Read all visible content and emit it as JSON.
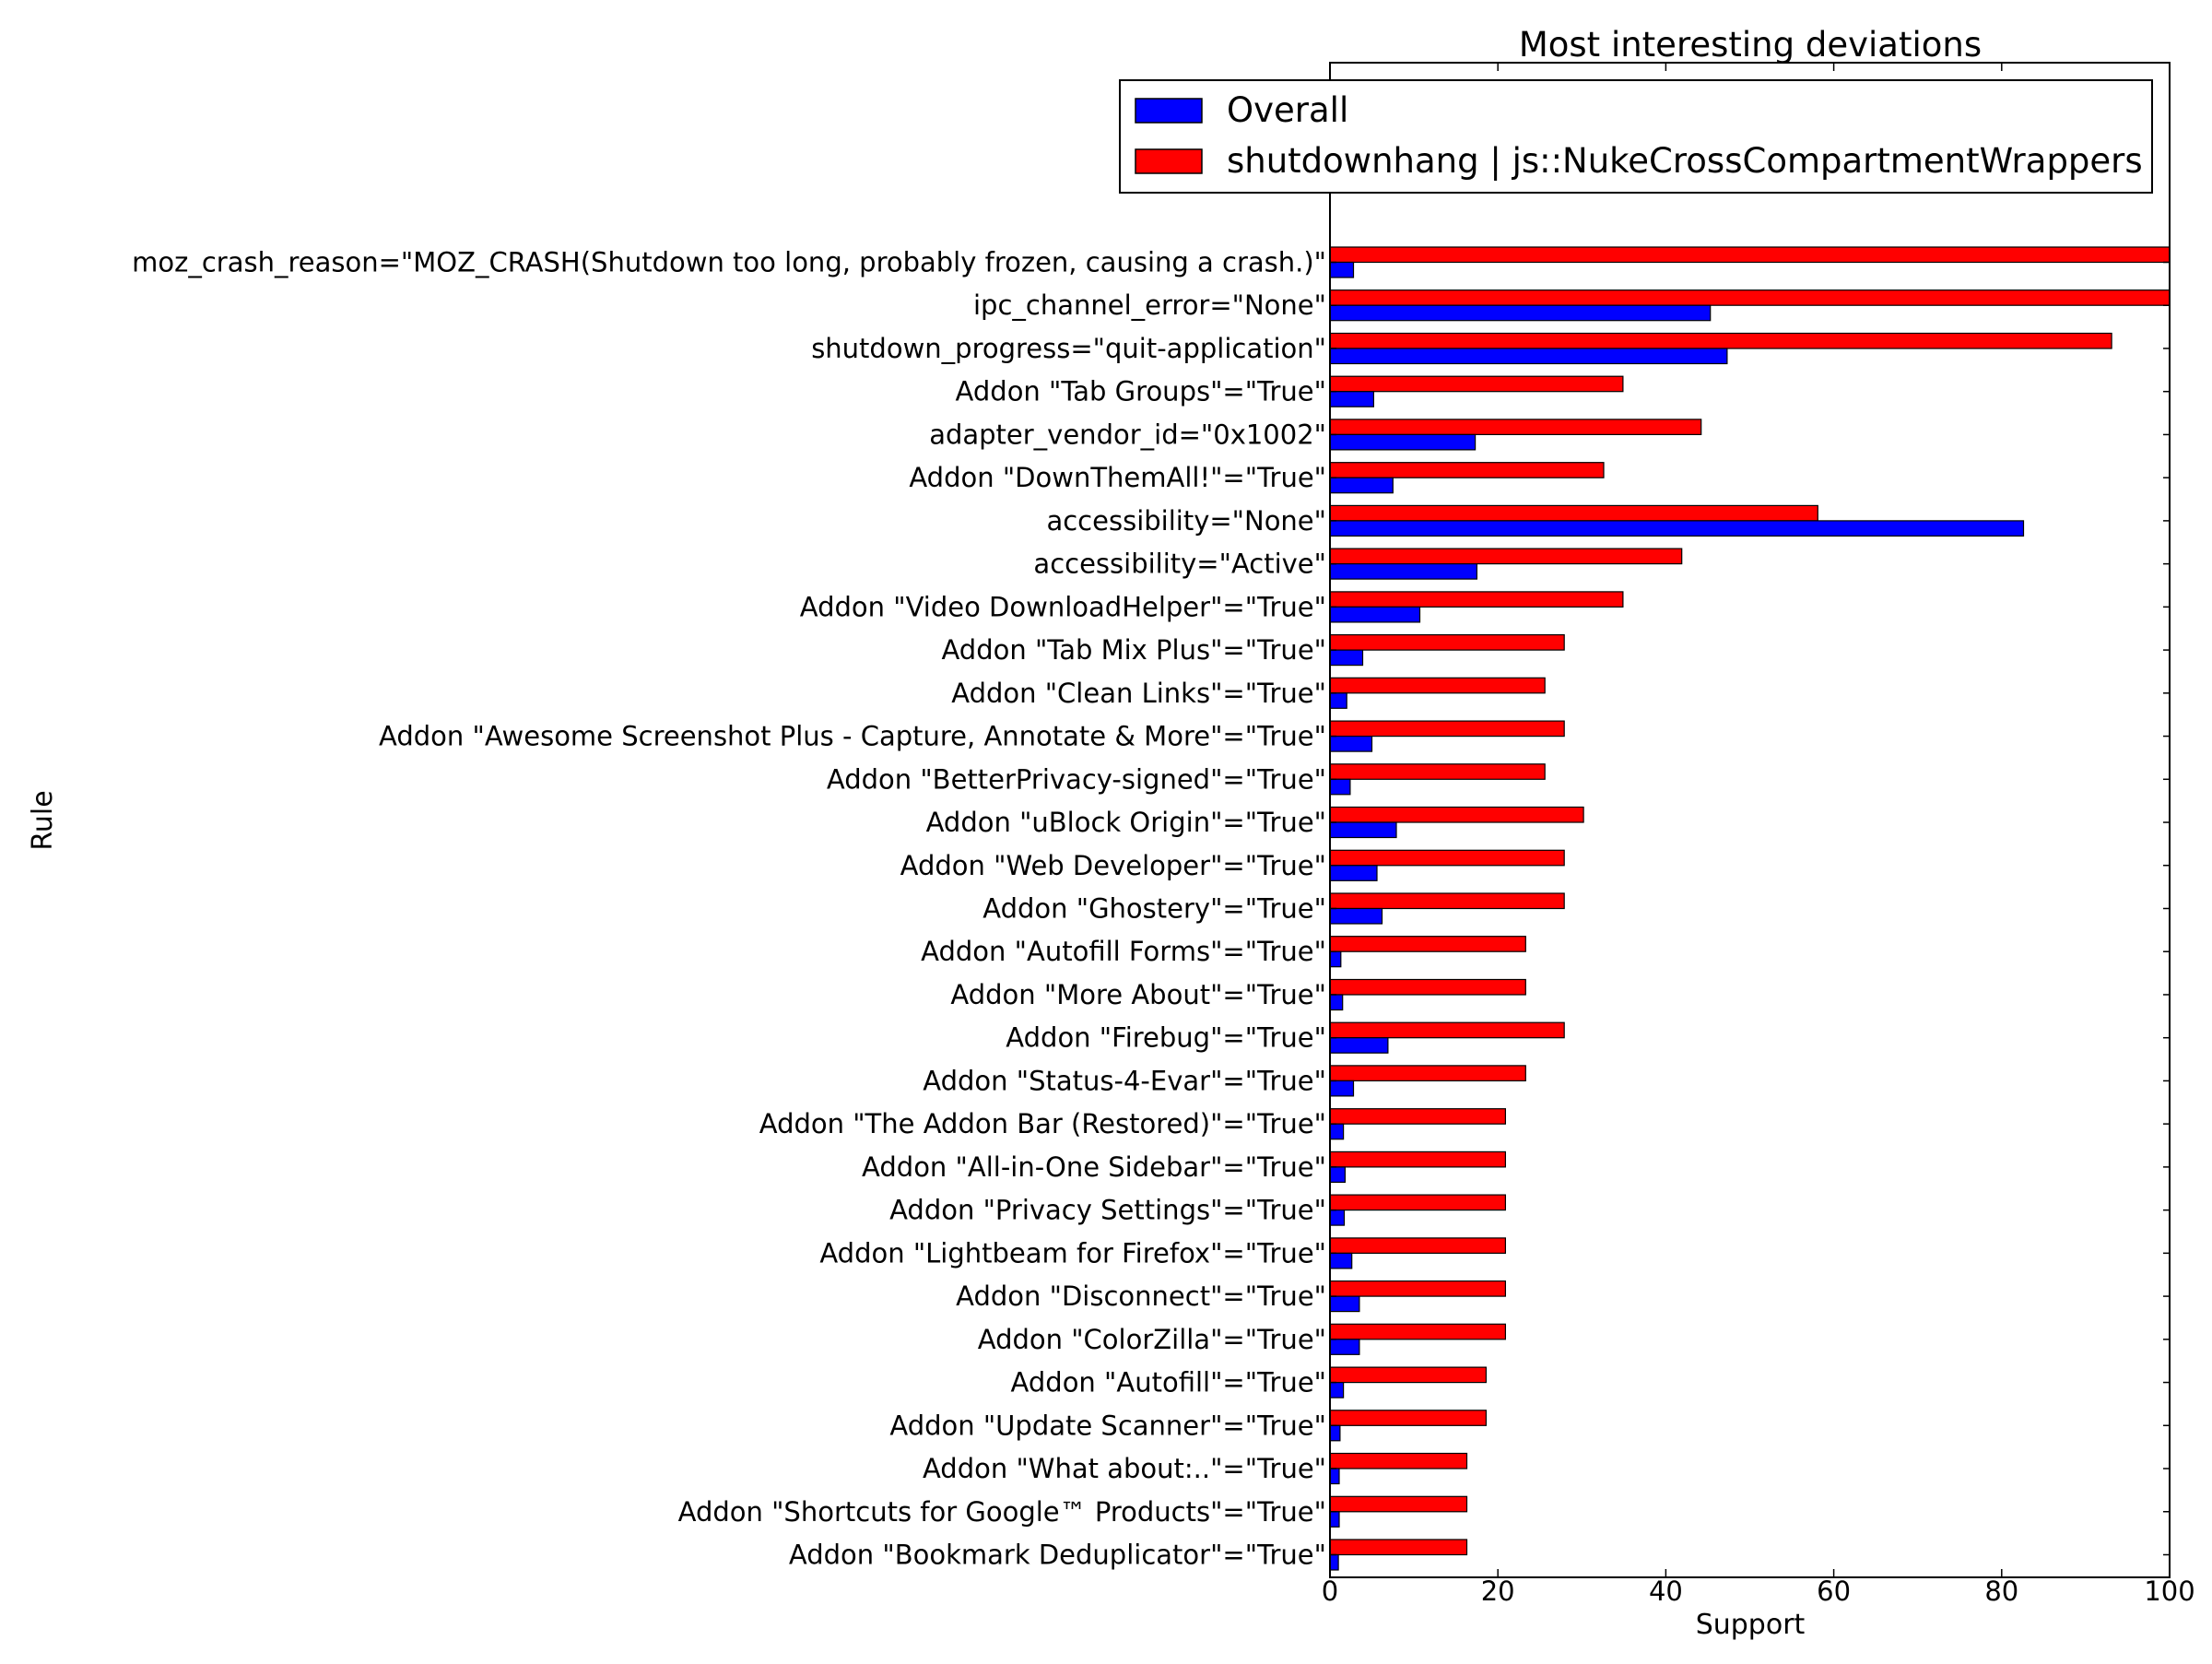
{
  "chart_data": {
    "type": "bar",
    "orientation": "horizontal",
    "title": "Most interesting deviations",
    "xlabel": "Support",
    "ylabel": "Rule",
    "xlim": [
      0,
      100
    ],
    "xticks": [
      "0",
      "20",
      "40",
      "60",
      "80",
      "100"
    ],
    "grid": false,
    "legend_position": "top-right",
    "categories": [
      "moz_crash_reason=\"MOZ_CRASH(Shutdown too long, probably frozen, causing a crash.)\"",
      "ipc_channel_error=\"None\"",
      "shutdown_progress=\"quit-application\"",
      "Addon \"Tab Groups\"=\"True\"",
      "adapter_vendor_id=\"0x1002\"",
      "Addon \"DownThemAll!\"=\"True\"",
      "accessibility=\"None\"",
      "accessibility=\"Active\"",
      "Addon \"Video DownloadHelper\"=\"True\"",
      "Addon \"Tab Mix Plus\"=\"True\"",
      "Addon \"Clean Links\"=\"True\"",
      "Addon \"Awesome Screenshot Plus - Capture, Annotate & More\"=\"True\"",
      "Addon \"BetterPrivacy-signed\"=\"True\"",
      "Addon \"uBlock Origin\"=\"True\"",
      "Addon \"Web Developer\"=\"True\"",
      "Addon \"Ghostery\"=\"True\"",
      "Addon \"Autofill Forms\"=\"True\"",
      "Addon \"More About\"=\"True\"",
      "Addon \"Firebug\"=\"True\"",
      "Addon \"Status-4-Evar\"=\"True\"",
      "Addon \"The Addon Bar (Restored)\"=\"True\"",
      "Addon \"All-in-One Sidebar\"=\"True\"",
      "Addon \"Privacy Settings\"=\"True\"",
      "Addon \"Lightbeam for Firefox\"=\"True\"",
      "Addon \"Disconnect\"=\"True\"",
      "Addon \"ColorZilla\"=\"True\"",
      "Addon \"Autofill\"=\"True\"",
      "Addon \"Update Scanner\"=\"True\"",
      "Addon \"What about:..\"=\"True\"",
      "Addon \"Shortcuts for Google™ Products\"=\"True\"",
      "Addon \"Bookmark Deduplicator\"=\"True\""
    ],
    "series": [
      {
        "name": "Overall",
        "color": "#0000ff",
        "values": [
          2.8,
          45.3,
          47.3,
          5.2,
          17.3,
          7.5,
          82.6,
          17.5,
          10.7,
          3.9,
          2.0,
          5.0,
          2.4,
          7.9,
          5.6,
          6.2,
          1.3,
          1.5,
          6.9,
          2.8,
          1.6,
          1.8,
          1.7,
          2.6,
          3.5,
          3.5,
          1.6,
          1.2,
          1.1,
          1.1,
          1.0
        ]
      },
      {
        "name": "shutdownhang | js::NukeCrossCompartmentWrappers",
        "color": "#ff0000",
        "values": [
          100,
          100,
          93.1,
          34.9,
          44.2,
          32.6,
          58.1,
          41.9,
          34.9,
          27.9,
          25.6,
          27.9,
          25.6,
          30.2,
          27.9,
          27.9,
          23.3,
          23.3,
          27.9,
          23.3,
          20.9,
          20.9,
          20.9,
          20.9,
          20.9,
          20.9,
          18.6,
          18.6,
          16.3,
          16.3,
          16.3
        ]
      }
    ]
  }
}
